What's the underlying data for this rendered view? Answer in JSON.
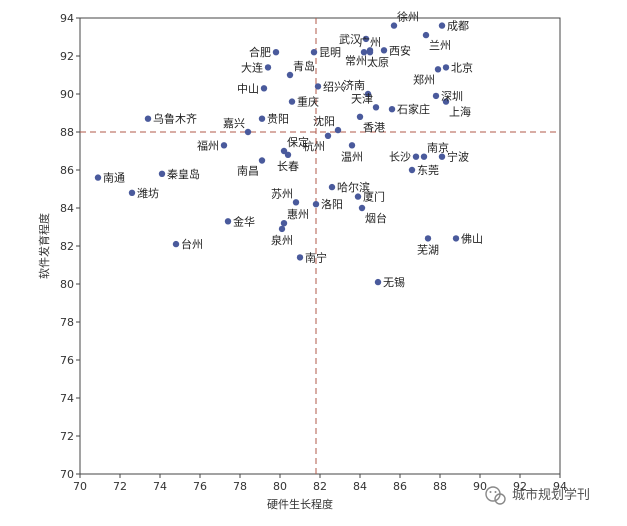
{
  "chart_data": {
    "type": "scatter",
    "xlabel": "硬件生长程度",
    "ylabel": "软件发育程度",
    "xlim": [
      70,
      94
    ],
    "ylim": [
      70,
      94
    ],
    "x_ticks": [
      70,
      72,
      74,
      76,
      78,
      80,
      82,
      84,
      86,
      88,
      90,
      92,
      94
    ],
    "y_ticks": [
      70,
      72,
      74,
      76,
      78,
      80,
      82,
      84,
      86,
      88,
      90,
      92,
      94
    ],
    "reference_lines": {
      "x": 81.8,
      "y": 88.0,
      "style": "dashed",
      "color": "#b05a4a"
    },
    "marker_color": "#4a5a9c",
    "points": [
      {
        "name": "武汉",
        "x": 84.3,
        "y": 92.9
      },
      {
        "name": "广州",
        "x": 84.5,
        "y": 92.2
      },
      {
        "name": "徐州",
        "x": 85.7,
        "y": 93.6
      },
      {
        "name": "成都",
        "x": 88.1,
        "y": 93.6
      },
      {
        "name": "兰州",
        "x": 87.3,
        "y": 93.1
      },
      {
        "name": "合肥",
        "x": 79.8,
        "y": 92.2
      },
      {
        "name": "昆明",
        "x": 81.7,
        "y": 92.2
      },
      {
        "name": "西安",
        "x": 85.2,
        "y": 92.3
      },
      {
        "name": "常州",
        "x": 84.5,
        "y": 92.3
      },
      {
        "name": "大连",
        "x": 79.4,
        "y": 91.4
      },
      {
        "name": "青岛",
        "x": 80.5,
        "y": 91.0
      },
      {
        "name": "北京",
        "x": 88.3,
        "y": 91.4
      },
      {
        "name": "郑州",
        "x": 87.9,
        "y": 91.3
      },
      {
        "name": "太原",
        "x": 84.2,
        "y": 92.2
      },
      {
        "name": "绍兴",
        "x": 81.9,
        "y": 90.4
      },
      {
        "name": "中山",
        "x": 79.2,
        "y": 90.3
      },
      {
        "name": "济南",
        "x": 84.4,
        "y": 90.0
      },
      {
        "name": "深圳",
        "x": 87.8,
        "y": 89.9
      },
      {
        "name": "重庆",
        "x": 80.6,
        "y": 89.6
      },
      {
        "name": "天津",
        "x": 84.8,
        "y": 89.3
      },
      {
        "name": "上海",
        "x": 88.3,
        "y": 89.6
      },
      {
        "name": "石家庄",
        "x": 85.6,
        "y": 89.2
      },
      {
        "name": "乌鲁木齐",
        "x": 73.4,
        "y": 88.7
      },
      {
        "name": "贵阳",
        "x": 79.1,
        "y": 88.7
      },
      {
        "name": "沈阳",
        "x": 82.9,
        "y": 88.1
      },
      {
        "name": "香港",
        "x": 84.0,
        "y": 88.8
      },
      {
        "name": "嘉兴",
        "x": 78.4,
        "y": 88.0
      },
      {
        "name": "杭州",
        "x": 82.4,
        "y": 87.8
      },
      {
        "name": "福州",
        "x": 77.2,
        "y": 87.3
      },
      {
        "name": "保定",
        "x": 80.2,
        "y": 87.0
      },
      {
        "name": "温州",
        "x": 83.6,
        "y": 87.3
      },
      {
        "name": "南京",
        "x": 87.2,
        "y": 86.7
      },
      {
        "name": "长沙",
        "x": 86.8,
        "y": 86.7
      },
      {
        "name": "宁波",
        "x": 88.1,
        "y": 86.7
      },
      {
        "name": "南昌",
        "x": 79.1,
        "y": 86.5
      },
      {
        "name": "长春",
        "x": 80.4,
        "y": 86.8
      },
      {
        "name": "东莞",
        "x": 86.6,
        "y": 86.0
      },
      {
        "name": "南通",
        "x": 70.9,
        "y": 85.6
      },
      {
        "name": "秦皇岛",
        "x": 74.1,
        "y": 85.8
      },
      {
        "name": "潍坊",
        "x": 72.6,
        "y": 84.8
      },
      {
        "name": "哈尔滨",
        "x": 82.6,
        "y": 85.1
      },
      {
        "name": "厦门",
        "x": 83.9,
        "y": 84.6
      },
      {
        "name": "苏州",
        "x": 80.8,
        "y": 84.3
      },
      {
        "name": "洛阳",
        "x": 81.8,
        "y": 84.2
      },
      {
        "name": "烟台",
        "x": 84.1,
        "y": 84.0
      },
      {
        "name": "金华",
        "x": 77.4,
        "y": 83.3
      },
      {
        "name": "惠州",
        "x": 80.2,
        "y": 83.2
      },
      {
        "name": "泉州",
        "x": 80.1,
        "y": 82.9
      },
      {
        "name": "芜湖",
        "x": 87.4,
        "y": 82.4
      },
      {
        "name": "佛山",
        "x": 88.8,
        "y": 82.4
      },
      {
        "name": "台州",
        "x": 74.8,
        "y": 82.1
      },
      {
        "name": "南宁",
        "x": 81.0,
        "y": 81.4
      },
      {
        "name": "无锡",
        "x": 84.9,
        "y": 80.1
      }
    ]
  },
  "watermark": {
    "text": "城市规划学刊",
    "icon": "wechat-icon"
  }
}
